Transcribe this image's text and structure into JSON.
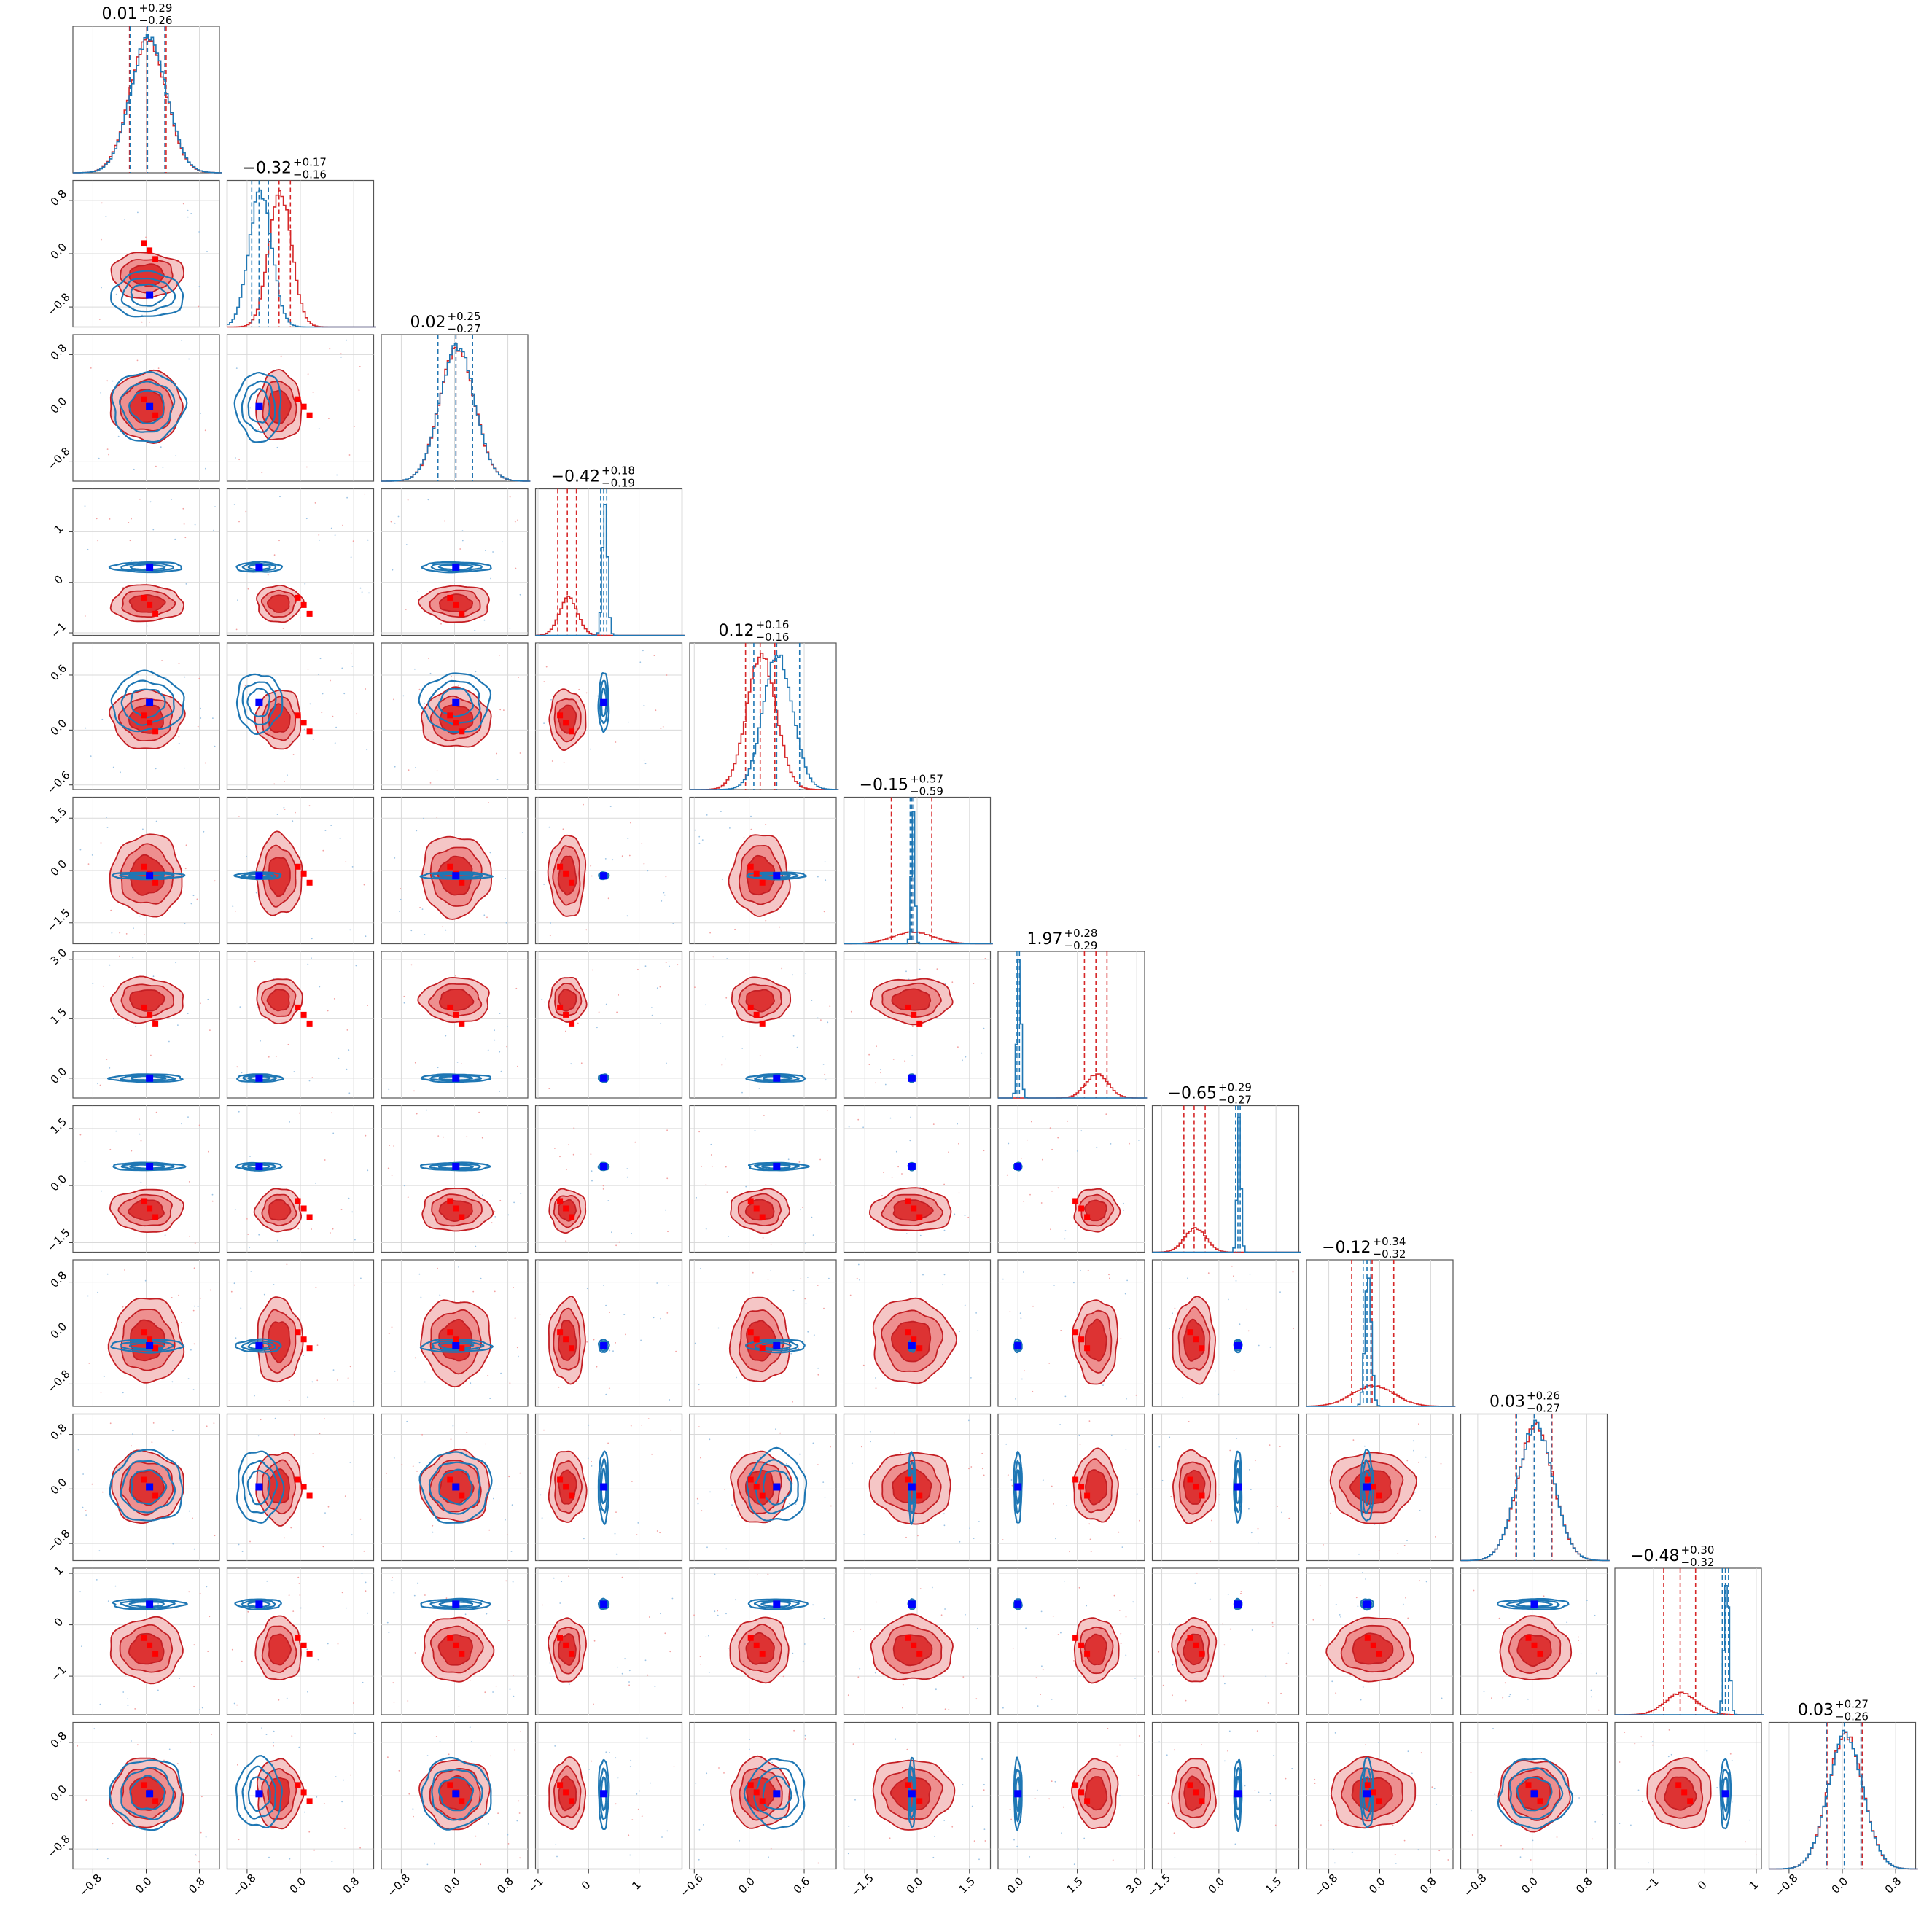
{
  "chart_data": {
    "type": "corner",
    "n_params": 12,
    "series": [
      {
        "name": "",
        "color": "#d62728",
        "fill": "#d62728",
        "marker_color": "#ff0000"
      },
      {
        "name": "",
        "color": "#1f77b4",
        "fill": "none",
        "marker_color": "#0000ff"
      }
    ],
    "titles": [
      {
        "value": "0.01",
        "plus": "+0.29",
        "minus": "−0.26"
      },
      {
        "value": "−0.32",
        "plus": "+0.17",
        "minus": "−0.16"
      },
      {
        "value": "0.02",
        "plus": "+0.25",
        "minus": "−0.27"
      },
      {
        "value": "−0.42",
        "plus": "+0.18",
        "minus": "−0.19"
      },
      {
        "value": "0.12",
        "plus": "+0.16",
        "minus": "−0.16"
      },
      {
        "value": "−0.15",
        "plus": "+0.57",
        "minus": "−0.59"
      },
      {
        "value": "1.97",
        "plus": "+0.28",
        "minus": "−0.29"
      },
      {
        "value": "−0.65",
        "plus": "+0.29",
        "minus": "−0.27"
      },
      {
        "value": "−0.12",
        "plus": "+0.34",
        "minus": "−0.32"
      },
      {
        "value": "0.03",
        "plus": "+0.26",
        "minus": "−0.27"
      },
      {
        "value": "−0.48",
        "plus": "+0.30",
        "minus": "−0.32"
      },
      {
        "value": "0.03",
        "plus": "+0.27",
        "minus": "−0.26"
      }
    ],
    "ranges": [
      [
        -1.1,
        1.1
      ],
      [
        -1.1,
        1.1
      ],
      [
        -1.1,
        1.1
      ],
      [
        -1.05,
        1.85
      ],
      [
        -0.65,
        0.95
      ],
      [
        -2.1,
        2.1
      ],
      [
        -0.5,
        3.2
      ],
      [
        -1.75,
        2.1
      ],
      [
        -1.15,
        1.15
      ],
      [
        -1.05,
        1.1
      ],
      [
        -1.75,
        1.1
      ],
      [
        -1.1,
        1.1
      ]
    ],
    "ticks": [
      {
        "values": [
          -0.8,
          0.0,
          0.8
        ],
        "labels": [
          "−0.8",
          "0.0",
          "0.8"
        ]
      },
      {
        "values": [
          -0.8,
          0.0,
          0.8
        ],
        "labels": [
          "−0.8",
          "0.0",
          "0.8"
        ]
      },
      {
        "values": [
          -0.8,
          0.0,
          0.8
        ],
        "labels": [
          "−0.8",
          "0.0",
          "0.8"
        ]
      },
      {
        "values": [
          -1,
          0,
          1
        ],
        "labels": [
          "−1",
          "0",
          "1"
        ]
      },
      {
        "values": [
          -0.6,
          0.0,
          0.6
        ],
        "labels": [
          "−0.6",
          "0.0",
          "0.6"
        ]
      },
      {
        "values": [
          -1.5,
          0.0,
          1.5
        ],
        "labels": [
          "−1.5",
          "0.0",
          "1.5"
        ]
      },
      {
        "values": [
          0.0,
          1.5,
          3.0
        ],
        "labels": [
          "0.0",
          "1.5",
          "3.0"
        ]
      },
      {
        "values": [
          -1.5,
          0.0,
          1.5
        ],
        "labels": [
          "−1.5",
          "0.0",
          "1.5"
        ]
      },
      {
        "values": [
          -0.8,
          0.0,
          0.8
        ],
        "labels": [
          "−0.8",
          "0.0",
          "0.8"
        ]
      },
      {
        "values": [
          -0.8,
          0.0,
          0.8
        ],
        "labels": [
          "−0.8",
          "0.0",
          "0.8"
        ]
      },
      {
        "values": [
          -1,
          0,
          1
        ],
        "labels": [
          "−1",
          "0",
          "1"
        ]
      },
      {
        "values": [
          -0.8,
          0.0,
          0.8
        ],
        "labels": [
          "−0.8",
          "0.0",
          "0.8"
        ]
      }
    ],
    "red": {
      "means": [
        0.01,
        -0.32,
        0.02,
        -0.42,
        0.12,
        -0.15,
        1.97,
        -0.65,
        -0.12,
        0.03,
        -0.48,
        0.03
      ],
      "sigmas": [
        0.27,
        0.17,
        0.26,
        0.18,
        0.16,
        0.58,
        0.28,
        0.28,
        0.33,
        0.26,
        0.31,
        0.26
      ],
      "q16": [
        -0.25,
        -0.48,
        -0.25,
        -0.61,
        -0.04,
        -0.74,
        1.68,
        -0.92,
        -0.44,
        -0.24,
        -0.8,
        -0.23
      ],
      "q84": [
        0.3,
        -0.15,
        0.27,
        -0.24,
        0.28,
        0.42,
        2.25,
        -0.36,
        0.22,
        0.29,
        -0.18,
        0.3
      ],
      "markers": [
        0.05,
        0.05,
        0.02,
        -0.45,
        0.08,
        -0.1,
        1.6,
        -0.6,
        -0.1,
        0.03,
        -0.4,
        0.05
      ]
    },
    "blue": {
      "means": [
        0.02,
        -0.62,
        0.02,
        0.3,
        0.3,
        -0.15,
        0.0,
        0.5,
        -0.2,
        0.03,
        0.4,
        0.03
      ],
      "sigmas": [
        0.27,
        0.17,
        0.26,
        0.05,
        0.16,
        0.05,
        0.05,
        0.05,
        0.05,
        0.26,
        0.05,
        0.26
      ],
      "q16": [
        -0.24,
        -0.73,
        -0.25,
        0.24,
        0.05,
        -0.2,
        -0.04,
        0.44,
        -0.26,
        -0.23,
        0.34,
        -0.24
      ],
      "q84": [
        0.28,
        -0.48,
        0.27,
        0.36,
        0.55,
        -0.1,
        0.04,
        0.56,
        -0.14,
        0.28,
        0.46,
        0.28
      ],
      "truths": [
        0.05,
        -0.62,
        0.02,
        0.3,
        0.3,
        -0.15,
        0.0,
        0.5,
        -0.2,
        0.03,
        0.4,
        0.03
      ]
    },
    "grid": true,
    "xlabel": "",
    "ylabel": ""
  }
}
